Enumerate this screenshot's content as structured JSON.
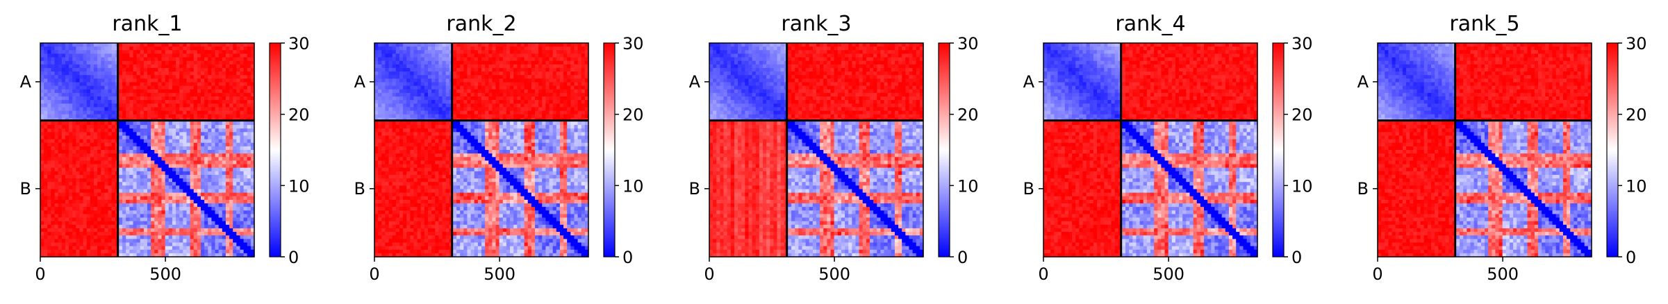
{
  "chart_data": [
    {
      "type": "heatmap",
      "title": "rank_1",
      "xlabel": "",
      "ylabel": "",
      "x_ticks": [
        "0",
        "500"
      ],
      "y_ticks": [
        "A",
        "B"
      ],
      "chains": [
        {
          "name": "A",
          "start": 0,
          "end": 310
        },
        {
          "name": "B",
          "start": 310,
          "end": 855
        }
      ],
      "matrix_size": 855,
      "colormap": "bwr",
      "clim": [
        0,
        30
      ],
      "colorbar_ticks": [
        "0",
        "10",
        "20",
        "30"
      ],
      "boundary_line": 310,
      "variant": 1
    },
    {
      "type": "heatmap",
      "title": "rank_2",
      "xlabel": "",
      "ylabel": "",
      "x_ticks": [
        "0",
        "500"
      ],
      "y_ticks": [
        "A",
        "B"
      ],
      "chains": [
        {
          "name": "A",
          "start": 0,
          "end": 310
        },
        {
          "name": "B",
          "start": 310,
          "end": 855
        }
      ],
      "matrix_size": 855,
      "colormap": "bwr",
      "clim": [
        0,
        30
      ],
      "colorbar_ticks": [
        "0",
        "10",
        "20",
        "30"
      ],
      "boundary_line": 310,
      "variant": 2
    },
    {
      "type": "heatmap",
      "title": "rank_3",
      "xlabel": "",
      "ylabel": "",
      "x_ticks": [
        "0",
        "500"
      ],
      "y_ticks": [
        "A",
        "B"
      ],
      "chains": [
        {
          "name": "A",
          "start": 0,
          "end": 310
        },
        {
          "name": "B",
          "start": 310,
          "end": 855
        }
      ],
      "matrix_size": 855,
      "colormap": "bwr",
      "clim": [
        0,
        30
      ],
      "colorbar_ticks": [
        "0",
        "10",
        "20",
        "30"
      ],
      "boundary_line": 310,
      "variant": 3
    },
    {
      "type": "heatmap",
      "title": "rank_4",
      "xlabel": "",
      "ylabel": "",
      "x_ticks": [
        "0",
        "500"
      ],
      "y_ticks": [
        "A",
        "B"
      ],
      "chains": [
        {
          "name": "A",
          "start": 0,
          "end": 310
        },
        {
          "name": "B",
          "start": 310,
          "end": 855
        }
      ],
      "matrix_size": 855,
      "colormap": "bwr",
      "clim": [
        0,
        30
      ],
      "colorbar_ticks": [
        "0",
        "10",
        "20",
        "30"
      ],
      "boundary_line": 310,
      "variant": 4
    },
    {
      "type": "heatmap",
      "title": "rank_5",
      "xlabel": "",
      "ylabel": "",
      "x_ticks": [
        "0",
        "500"
      ],
      "y_ticks": [
        "A",
        "B"
      ],
      "chains": [
        {
          "name": "A",
          "start": 0,
          "end": 310
        },
        {
          "name": "B",
          "start": 310,
          "end": 855
        }
      ],
      "matrix_size": 855,
      "colormap": "bwr",
      "clim": [
        0,
        30
      ],
      "colorbar_ticks": [
        "0",
        "10",
        "20",
        "30"
      ],
      "boundary_line": 310,
      "variant": 5
    }
  ],
  "colors": {
    "low": "#0000ff",
    "mid": "#ffffff",
    "high": "#ff0000",
    "boundary": "#000000"
  }
}
